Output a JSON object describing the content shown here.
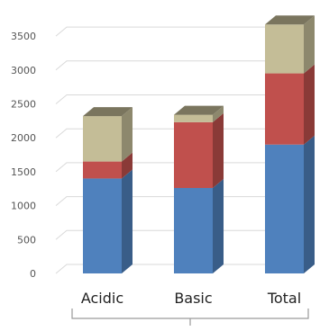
{
  "chart_data": {
    "type": "bar",
    "stacked": true,
    "three_d": true,
    "categories": [
      "Acidic",
      "Basic",
      "Total"
    ],
    "series": [
      {
        "values": [
          1400,
          1260,
          1900
        ],
        "color": "#4F81BD"
      },
      {
        "values": [
          250,
          970,
          1050
        ],
        "color": "#C0504D"
      },
      {
        "values": [
          670,
          110,
          720
        ],
        "color": "#C4BD97"
      }
    ],
    "y_ticks": [
      "0",
      "500",
      "1000",
      "1500",
      "2000",
      "2500",
      "3000",
      "3500"
    ],
    "ylim": [
      0,
      3500
    ],
    "grid": true,
    "legend": "none"
  }
}
